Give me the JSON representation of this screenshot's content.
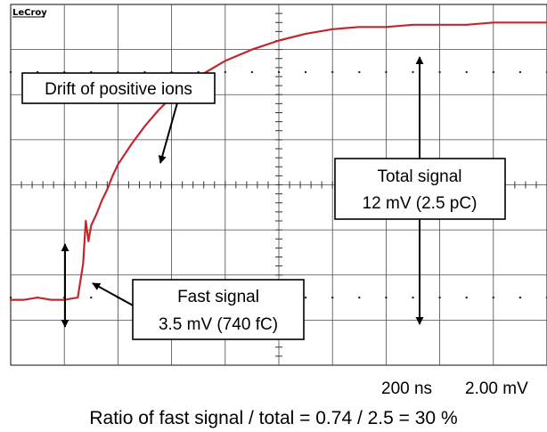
{
  "chart_data": {
    "type": "line",
    "brand": "LeCroy",
    "timebase": "200 ns",
    "vertical_scale": "2.00 mV",
    "xlim": [
      0,
      2000
    ],
    "ylim": [
      -8,
      8
    ],
    "x_unit": "ns",
    "y_unit": "mV",
    "grid": true,
    "grid_divisions": {
      "horizontal": 10,
      "vertical": 8
    },
    "series": [
      {
        "color": "#c0282d",
        "x": [
          0,
          50,
          100,
          150,
          200,
          250,
          270,
          280,
          290,
          300,
          320,
          340,
          360,
          380,
          400,
          450,
          500,
          550,
          600,
          700,
          800,
          900,
          1000,
          1100,
          1200,
          1300,
          1400,
          1500,
          1600,
          1700,
          1800,
          1900,
          2000
        ],
        "y": [
          -5.1,
          -5.1,
          -5.0,
          -5.1,
          -5.1,
          -5.0,
          -3.5,
          -1.6,
          -2.5,
          -1.8,
          -1.3,
          -0.7,
          -0.2,
          0.4,
          0.9,
          1.8,
          2.6,
          3.3,
          3.9,
          4.8,
          5.5,
          6.0,
          6.4,
          6.7,
          6.9,
          7.0,
          7.0,
          7.1,
          7.1,
          7.1,
          7.2,
          7.2,
          7.2
        ]
      }
    ],
    "annotations": [
      {
        "id": "drift",
        "text": "Drift of positive ions"
      },
      {
        "id": "total",
        "lines": [
          "Total signal",
          "12 mV (2.5 pC)"
        ]
      },
      {
        "id": "fast",
        "lines": [
          "Fast signal",
          "3.5 mV (740 fC)"
        ]
      }
    ],
    "caption": "Ratio of fast signal / total = 0.74 / 2.5 = 30 %"
  }
}
